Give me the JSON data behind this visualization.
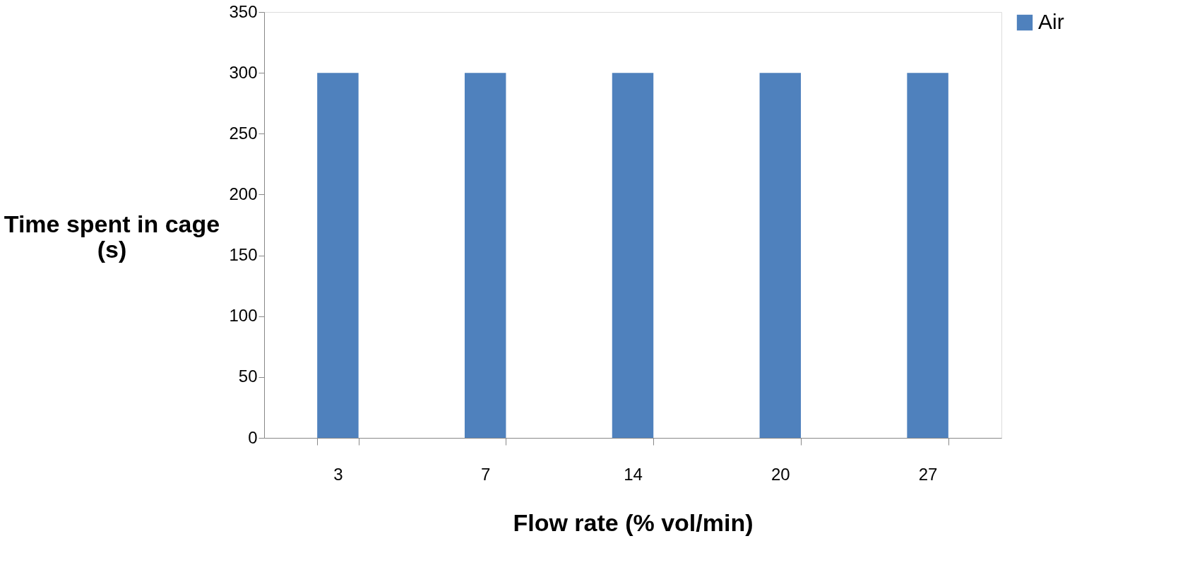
{
  "chart_data": {
    "type": "bar",
    "xlabel": "Flow rate (% vol/min)",
    "ylabel": "Time spent in cage (s)",
    "categories": [
      "3",
      "7",
      "14",
      "20",
      "27"
    ],
    "series": [
      {
        "name": "Air",
        "color": "#4f81bd",
        "values": [
          300,
          300,
          300,
          300,
          300
        ]
      }
    ],
    "ylim": [
      0,
      350
    ],
    "yticks": [
      0,
      50,
      100,
      150,
      200,
      250,
      300,
      350
    ],
    "grid": false,
    "legend": "right"
  }
}
